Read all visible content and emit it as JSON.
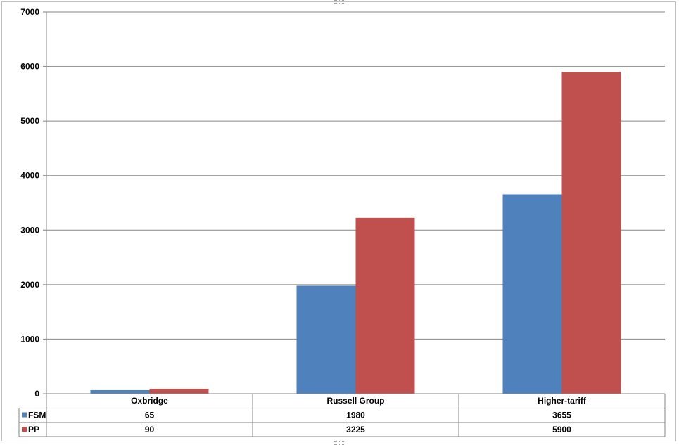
{
  "chart_data": {
    "type": "bar",
    "categories": [
      "Oxbridge",
      "Russell Group",
      "Higher-tariff"
    ],
    "series": [
      {
        "name": "FSM",
        "values": [
          65,
          1980,
          3655
        ],
        "color": "#4f81bd"
      },
      {
        "name": "PP",
        "values": [
          90,
          3225,
          5900
        ],
        "color": "#c0504d"
      }
    ],
    "title": "",
    "xlabel": "",
    "ylabel": "",
    "ylim": [
      0,
      7000
    ],
    "yticks": [
      0,
      1000,
      2000,
      3000,
      4000,
      5000,
      6000,
      7000
    ],
    "grid": true,
    "legend": "data-table",
    "table_values": [
      [
        "65",
        "1980",
        "3655"
      ],
      [
        "90",
        "3225",
        "5900"
      ]
    ]
  }
}
